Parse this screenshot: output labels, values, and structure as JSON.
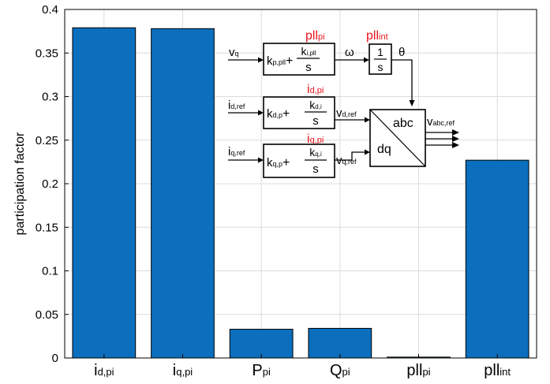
{
  "chart_data": {
    "type": "bar",
    "categories": [
      {
        "main": "i",
        "sub": "d,pi"
      },
      {
        "main": "i",
        "sub": "q,pi"
      },
      {
        "main": "P",
        "sub": "pi"
      },
      {
        "main": "Q",
        "sub": "pi"
      },
      {
        "main": "pll",
        "sub": "pi"
      },
      {
        "main": "pll",
        "sub": "int"
      }
    ],
    "values": [
      0.379,
      0.378,
      0.033,
      0.034,
      0.001,
      0.227
    ],
    "title": "",
    "xlabel": "",
    "ylabel": "participation factor",
    "ylim": [
      0,
      0.4
    ],
    "yticks": [
      "0",
      "0.05",
      "0.1",
      "0.15",
      "0.2",
      "0.25",
      "0.3",
      "0.35",
      "0.4"
    ],
    "grid": true,
    "bar_color": "#0b6fbd"
  },
  "diagram": {
    "pll_pi": {
      "main": "pll",
      "sub": "pi"
    },
    "pll_int": {
      "main": "pll",
      "sub": "int"
    },
    "id_pi": {
      "main": "i",
      "sub": "d,pi"
    },
    "iq_pi": {
      "main": "i",
      "sub": "q,pi"
    },
    "vq": {
      "main": "v",
      "sub": "q"
    },
    "omega": "ω",
    "theta": "θ",
    "pll_block": {
      "kp_main": "k",
      "kp_sub": "p,pll",
      "plus": "+",
      "ki_main": "k",
      "ki_sub": "i,pll",
      "den": "s"
    },
    "int_block": {
      "num": "1",
      "den": "s"
    },
    "id_ref": {
      "main": "i",
      "sub": "d,ref"
    },
    "iq_ref": {
      "main": "i",
      "sub": "q,ref"
    },
    "d_block": {
      "kp_main": "k",
      "kp_sub": "d,p",
      "plus": "+",
      "ki_main": "k",
      "ki_sub": "d,i",
      "den": "s"
    },
    "q_block": {
      "kp_main": "k",
      "kp_sub": "q,p",
      "plus": "+",
      "ki_main": "k",
      "ki_sub": "q,i",
      "den": "s"
    },
    "vd_ref": {
      "main": "v",
      "sub": "d,ref"
    },
    "vq_ref": {
      "main": "v",
      "sub": "q,ref"
    },
    "transform": {
      "top": "abc",
      "bottom": "dq"
    },
    "v_abc_ref": {
      "main": "v",
      "sub": "abc,ref"
    },
    "red_color": "#e8141b"
  }
}
